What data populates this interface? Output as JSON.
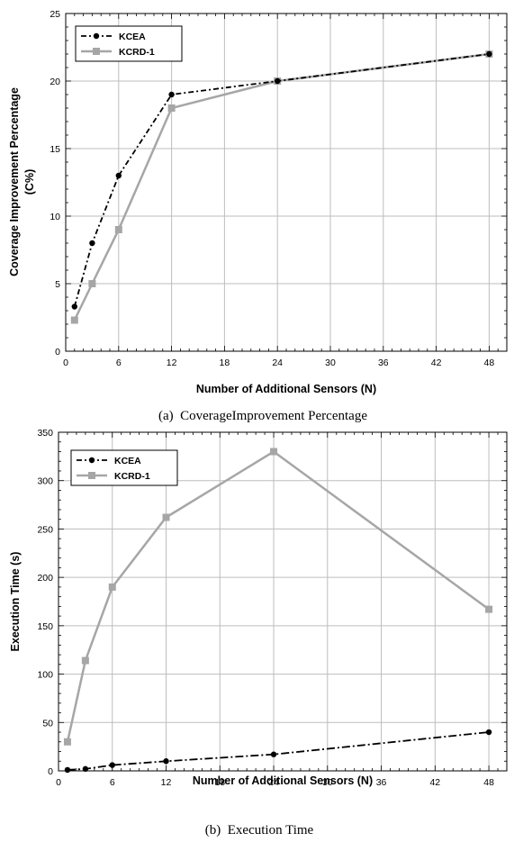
{
  "chart_data": [
    {
      "type": "line",
      "caption": "(a)  CoverageImprovement Percentage",
      "xlabel": "Number of Additional Sensors (N)",
      "ylabel_line1": "Coverage Improvement Percentage",
      "ylabel_line2": "(C%)",
      "x_ticks": [
        0,
        6,
        12,
        18,
        24,
        30,
        36,
        42,
        48
      ],
      "y_ticks": [
        0,
        5,
        10,
        15,
        20,
        25
      ],
      "xlim": [
        0,
        50
      ],
      "ylim": [
        0,
        25
      ],
      "grid": true,
      "legend_position": "top-left",
      "series": [
        {
          "name": "KCEA",
          "color": "#000000",
          "style": "dash-dot",
          "marker": "circle",
          "x": [
            1,
            3,
            6,
            12,
            24,
            48
          ],
          "y": [
            3.3,
            8,
            13,
            19,
            20,
            22
          ]
        },
        {
          "name": "KCRD-1",
          "color": "#a6a6a6",
          "style": "solid",
          "marker": "square",
          "x": [
            1,
            3,
            6,
            12,
            24,
            48
          ],
          "y": [
            2.3,
            5,
            9,
            18,
            20,
            22
          ]
        }
      ]
    },
    {
      "type": "line",
      "caption": "(b)  Execution Time",
      "xlabel": "Number of Additional Sensors (N)",
      "ylabel_line1": "Execution Time (s)",
      "ylabel_line2": "",
      "x_ticks": [
        0,
        6,
        12,
        18,
        24,
        30,
        36,
        42,
        48
      ],
      "y_ticks": [
        0,
        50,
        100,
        150,
        200,
        250,
        300,
        350
      ],
      "xlim": [
        0,
        50
      ],
      "ylim": [
        0,
        350
      ],
      "grid": true,
      "legend_position": "top-left",
      "series": [
        {
          "name": "KCEA",
          "color": "#000000",
          "style": "dash-dot",
          "marker": "circle",
          "x": [
            1,
            3,
            6,
            12,
            24,
            48
          ],
          "y": [
            1,
            2,
            6,
            10,
            17,
            40
          ]
        },
        {
          "name": "KCRD-1",
          "color": "#a6a6a6",
          "style": "solid",
          "marker": "square",
          "x": [
            1,
            3,
            6,
            12,
            24,
            48
          ],
          "y": [
            30,
            114,
            190,
            262,
            330,
            167
          ]
        }
      ]
    }
  ]
}
